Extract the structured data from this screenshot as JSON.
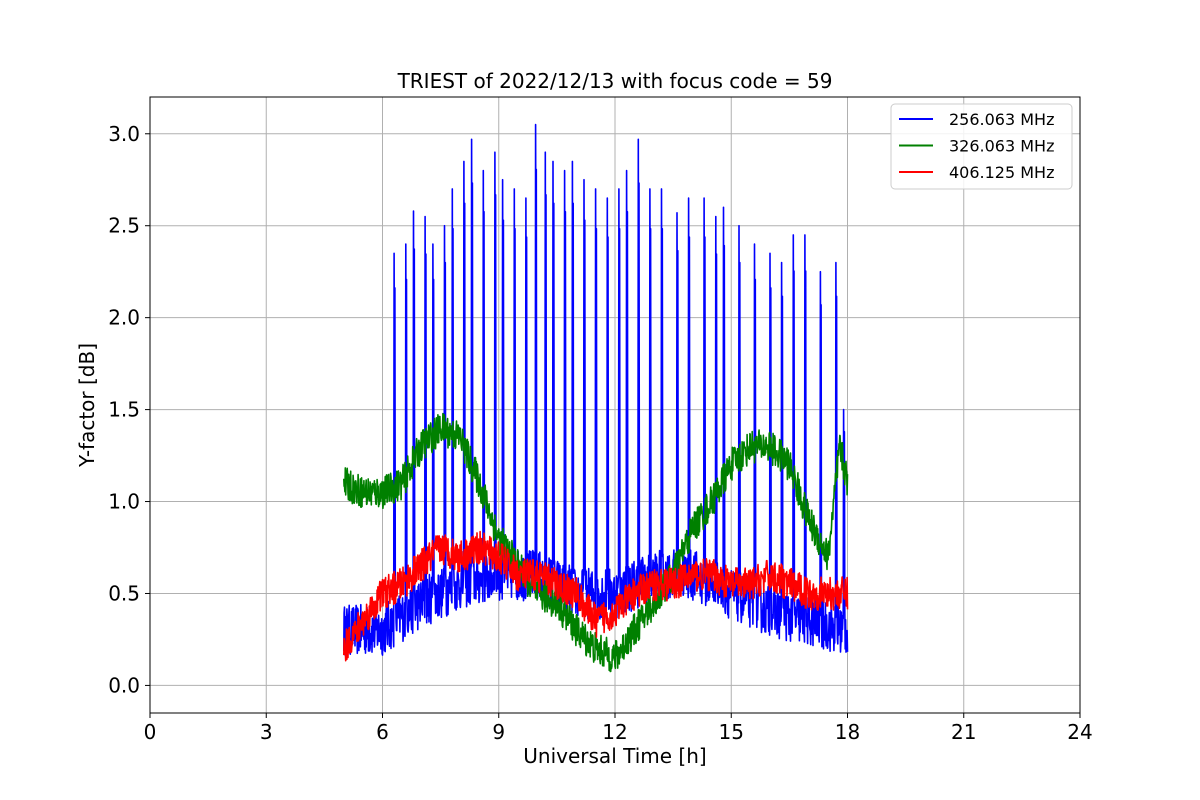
{
  "chart_data": {
    "type": "line",
    "title": "TRIEST of 2022/12/13 with focus code = 59",
    "xlabel": "Universal Time [h]",
    "ylabel": "Y-factor [dB]",
    "xlim": [
      0,
      24
    ],
    "ylim": [
      -0.15,
      3.2
    ],
    "xticks": [
      0,
      3,
      6,
      9,
      12,
      15,
      18,
      21,
      24
    ],
    "xtick_labels": [
      "0",
      "3",
      "6",
      "9",
      "12",
      "15",
      "18",
      "21",
      "24"
    ],
    "yticks": [
      0.0,
      0.5,
      1.0,
      1.5,
      2.0,
      2.5,
      3.0
    ],
    "ytick_labels": [
      "0.0",
      "0.5",
      "1.0",
      "1.5",
      "2.0",
      "2.5",
      "3.0"
    ],
    "grid": true,
    "legend_position": "top-right",
    "series": [
      {
        "name": "256.063 MHz",
        "color": "#0000ff",
        "baseline": [
          [
            5.0,
            0.3
          ],
          [
            6.0,
            0.3
          ],
          [
            7.0,
            0.45
          ],
          [
            8.0,
            0.55
          ],
          [
            9.0,
            0.6
          ],
          [
            10.0,
            0.6
          ],
          [
            11.0,
            0.5
          ],
          [
            12.0,
            0.5
          ],
          [
            13.0,
            0.6
          ],
          [
            14.0,
            0.6
          ],
          [
            15.0,
            0.5
          ],
          [
            16.0,
            0.4
          ],
          [
            17.0,
            0.35
          ],
          [
            18.0,
            0.3
          ]
        ],
        "peaks": [
          [
            6.3,
            2.35
          ],
          [
            6.6,
            2.4
          ],
          [
            6.8,
            2.58
          ],
          [
            7.1,
            2.55
          ],
          [
            7.3,
            2.4
          ],
          [
            7.6,
            2.5
          ],
          [
            7.8,
            2.7
          ],
          [
            8.1,
            2.85
          ],
          [
            8.3,
            2.97
          ],
          [
            8.6,
            2.8
          ],
          [
            8.9,
            2.9
          ],
          [
            9.1,
            2.75
          ],
          [
            9.4,
            2.7
          ],
          [
            9.7,
            2.65
          ],
          [
            9.95,
            3.05
          ],
          [
            10.2,
            2.9
          ],
          [
            10.4,
            2.85
          ],
          [
            10.7,
            2.8
          ],
          [
            10.9,
            2.85
          ],
          [
            11.2,
            2.75
          ],
          [
            11.5,
            2.7
          ],
          [
            11.8,
            2.65
          ],
          [
            12.1,
            2.7
          ],
          [
            12.3,
            2.8
          ],
          [
            12.6,
            2.97
          ],
          [
            12.9,
            2.7
          ],
          [
            13.2,
            2.7
          ],
          [
            13.6,
            2.57
          ],
          [
            13.9,
            2.65
          ],
          [
            14.3,
            2.65
          ],
          [
            14.6,
            2.55
          ],
          [
            14.8,
            2.6
          ],
          [
            15.2,
            2.5
          ],
          [
            15.6,
            2.4
          ],
          [
            16.0,
            2.35
          ],
          [
            16.3,
            2.3
          ],
          [
            16.6,
            2.45
          ],
          [
            16.9,
            2.45
          ],
          [
            17.3,
            2.25
          ],
          [
            17.7,
            2.3
          ],
          [
            17.9,
            1.5
          ]
        ]
      },
      {
        "name": "326.063 MHz",
        "color": "#008000",
        "baseline": [
          [
            5.0,
            1.1
          ],
          [
            5.5,
            1.05
          ],
          [
            6.0,
            1.05
          ],
          [
            6.5,
            1.1
          ],
          [
            7.0,
            1.3
          ],
          [
            7.5,
            1.4
          ],
          [
            8.0,
            1.35
          ],
          [
            8.5,
            1.1
          ],
          [
            9.0,
            0.8
          ],
          [
            9.5,
            0.65
          ],
          [
            10.0,
            0.5
          ],
          [
            10.5,
            0.45
          ],
          [
            11.0,
            0.3
          ],
          [
            11.5,
            0.2
          ],
          [
            12.0,
            0.15
          ],
          [
            12.5,
            0.3
          ],
          [
            13.0,
            0.45
          ],
          [
            13.5,
            0.6
          ],
          [
            14.0,
            0.85
          ],
          [
            14.5,
            1.0
          ],
          [
            15.0,
            1.2
          ],
          [
            15.5,
            1.3
          ],
          [
            16.0,
            1.3
          ],
          [
            16.5,
            1.2
          ],
          [
            17.0,
            0.9
          ],
          [
            17.5,
            0.7
          ],
          [
            17.8,
            1.3
          ],
          [
            18.0,
            1.1
          ]
        ]
      },
      {
        "name": "406.125 MHz",
        "color": "#ff0000",
        "baseline": [
          [
            5.0,
            0.2
          ],
          [
            5.5,
            0.35
          ],
          [
            6.0,
            0.5
          ],
          [
            6.5,
            0.55
          ],
          [
            7.0,
            0.65
          ],
          [
            7.5,
            0.75
          ],
          [
            8.0,
            0.7
          ],
          [
            8.5,
            0.75
          ],
          [
            9.0,
            0.7
          ],
          [
            9.5,
            0.6
          ],
          [
            10.0,
            0.6
          ],
          [
            10.5,
            0.55
          ],
          [
            11.0,
            0.5
          ],
          [
            11.5,
            0.35
          ],
          [
            12.0,
            0.4
          ],
          [
            12.5,
            0.5
          ],
          [
            13.0,
            0.55
          ],
          [
            13.5,
            0.55
          ],
          [
            14.0,
            0.6
          ],
          [
            14.5,
            0.6
          ],
          [
            15.0,
            0.55
          ],
          [
            15.5,
            0.55
          ],
          [
            16.0,
            0.6
          ],
          [
            16.5,
            0.55
          ],
          [
            17.0,
            0.5
          ],
          [
            17.5,
            0.5
          ],
          [
            18.0,
            0.5
          ]
        ]
      }
    ]
  }
}
